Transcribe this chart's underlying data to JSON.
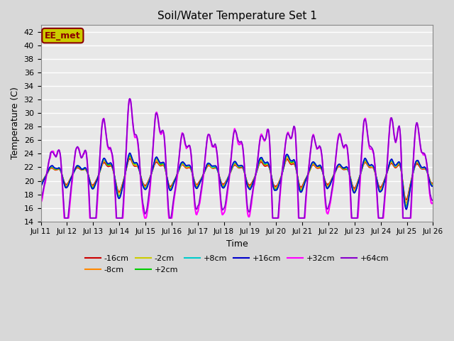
{
  "title": "Soil/Water Temperature Set 1",
  "xlabel": "Time",
  "ylabel": "Temperature (C)",
  "ylim": [
    14,
    43
  ],
  "yticks": [
    14,
    16,
    18,
    20,
    22,
    24,
    26,
    28,
    30,
    32,
    34,
    36,
    38,
    40,
    42
  ],
  "x_start_day": 11,
  "x_end_day": 26,
  "xtick_days": [
    11,
    12,
    13,
    14,
    15,
    16,
    17,
    18,
    19,
    20,
    21,
    22,
    23,
    24,
    25,
    26
  ],
  "series": [
    {
      "label": "-16cm",
      "color": "#cc0000",
      "lw": 1.2
    },
    {
      "label": "-8cm",
      "color": "#ff8800",
      "lw": 1.2
    },
    {
      "label": "-2cm",
      "color": "#cccc00",
      "lw": 1.2
    },
    {
      "label": "+2cm",
      "color": "#00cc00",
      "lw": 1.2
    },
    {
      "label": "+8cm",
      "color": "#00cccc",
      "lw": 1.2
    },
    {
      "label": "+16cm",
      "color": "#0000cc",
      "lw": 1.2
    },
    {
      "label": "+32cm",
      "color": "#ff00ff",
      "lw": 1.5
    },
    {
      "label": "+64cm",
      "color": "#8800cc",
      "lw": 1.2
    }
  ],
  "legend_box_color": "#cccc00",
  "legend_box_text": "EE_met",
  "bg_color": "#e8e8e8",
  "grid_color": "white",
  "n_points": 3600,
  "duration_days": 15
}
